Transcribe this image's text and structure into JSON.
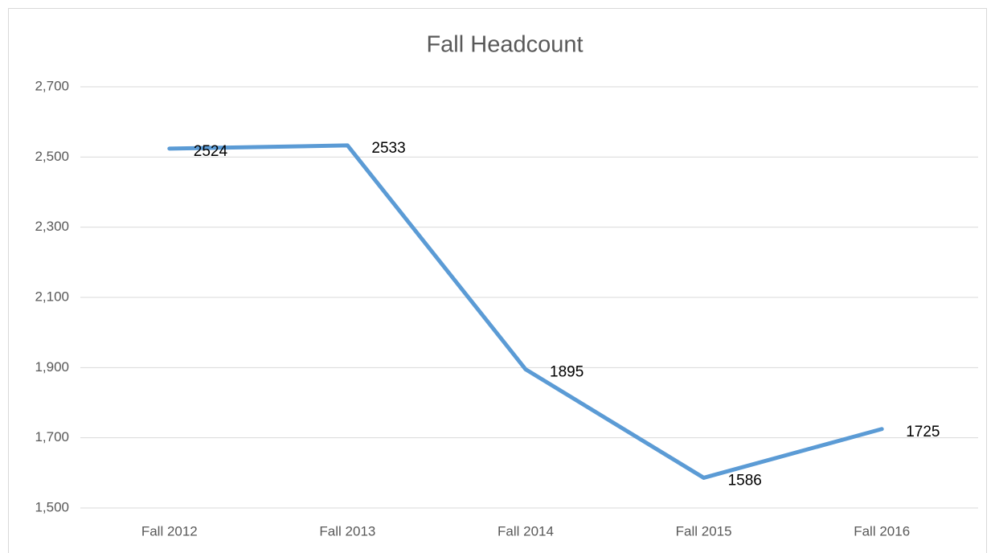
{
  "chart_data": {
    "type": "line",
    "title": "Fall Headcount",
    "categories": [
      "Fall 2012",
      "Fall 2013",
      "Fall 2014",
      "Fall 2015",
      "Fall 2016"
    ],
    "series": [
      {
        "name": "Fall Headcount",
        "color": "#5b9bd5",
        "values": [
          2524,
          2533,
          1895,
          1586,
          1725
        ]
      }
    ],
    "ylim": [
      1500,
      2700
    ],
    "yticks": [
      {
        "value": 1500,
        "label": "1,500"
      },
      {
        "value": 1700,
        "label": "1,700"
      },
      {
        "value": 1900,
        "label": "1,900"
      },
      {
        "value": 2100,
        "label": "2,100"
      },
      {
        "value": 2300,
        "label": "2,300"
      },
      {
        "value": 2500,
        "label": "2,500"
      },
      {
        "value": 2700,
        "label": "2,700"
      }
    ],
    "grid": true
  }
}
